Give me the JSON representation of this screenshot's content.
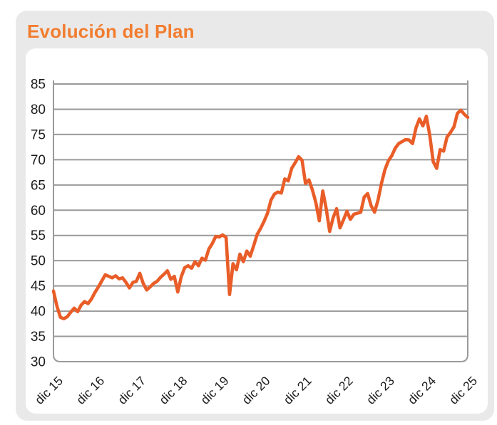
{
  "page": {
    "title": "Evolución del Plan"
  },
  "colors": {
    "title_orange": "#f27d2f",
    "line_orange": "#e95d28",
    "grid_gray": "#9a9a9a",
    "axis_text": "#1c1c1e",
    "card_bg": "#e9e9e9",
    "panel_bg": "#ffffff",
    "page_bg": "#ffffff"
  },
  "chart_data": {
    "type": "line",
    "title": "Evolución del Plan",
    "xlabel": "",
    "ylabel": "",
    "ylim": [
      30,
      85
    ],
    "y_ticks": [
      30,
      35,
      40,
      45,
      50,
      55,
      60,
      65,
      70,
      75,
      80,
      85
    ],
    "x_tick_labels": [
      "dic 15",
      "dic 16",
      "dic 17",
      "dic 18",
      "dic 19",
      "dic 20",
      "dic 21",
      "dic 22",
      "dic 23",
      "dic 24",
      "dic 25"
    ],
    "grid": "horizontal",
    "legend": "none",
    "series": [
      {
        "name": "Evolución del Plan",
        "color": "#e95d28",
        "frequency": "monthly",
        "start_label": "dic 15",
        "end_label": "dic 25",
        "values": [
          44.0,
          41.0,
          38.8,
          38.5,
          38.9,
          39.8,
          40.6,
          39.9,
          41.2,
          41.9,
          41.5,
          42.4,
          43.7,
          44.8,
          46.0,
          47.2,
          46.9,
          46.6,
          47.0,
          46.4,
          46.6,
          45.7,
          44.6,
          45.7,
          45.9,
          47.5,
          45.5,
          44.2,
          44.8,
          45.5,
          45.9,
          46.7,
          47.3,
          48.0,
          46.3,
          46.9,
          43.8,
          46.8,
          48.6,
          49.0,
          48.5,
          49.8,
          49.0,
          50.5,
          50.1,
          52.3,
          53.4,
          54.8,
          54.7,
          55.1,
          54.6,
          43.3,
          49.4,
          48.2,
          51.3,
          49.8,
          51.9,
          50.9,
          53.0,
          55.2,
          56.4,
          57.8,
          59.4,
          62.0,
          63.2,
          63.6,
          63.4,
          66.2,
          65.8,
          68.3,
          69.4,
          70.6,
          69.9,
          65.3,
          66.0,
          64.0,
          61.5,
          57.9,
          63.8,
          60.3,
          55.8,
          58.5,
          60.3,
          56.5,
          58.1,
          59.8,
          58.2,
          59.2,
          59.4,
          59.6,
          62.6,
          63.3,
          60.9,
          59.6,
          62.0,
          65.3,
          68.0,
          69.8,
          70.8,
          72.3,
          73.2,
          73.6,
          74.0,
          73.9,
          73.2,
          76.3,
          78.1,
          76.7,
          78.6,
          74.8,
          69.6,
          68.3,
          72.0,
          71.7,
          74.5,
          75.4,
          76.5,
          79.2,
          79.8,
          79.0,
          78.4
        ]
      }
    ]
  }
}
